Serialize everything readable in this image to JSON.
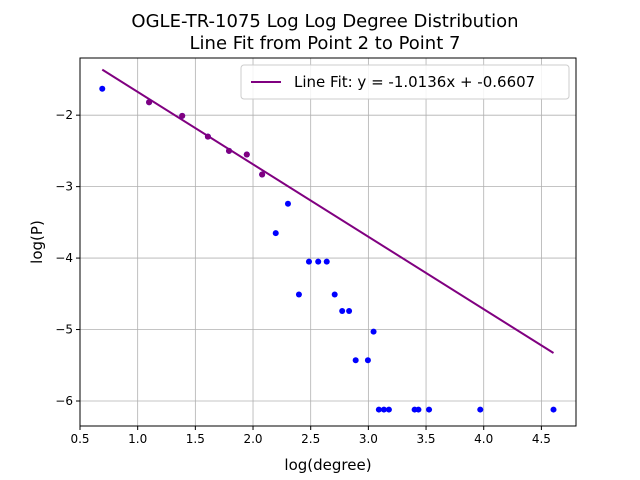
{
  "chart_data": {
    "type": "scatter",
    "title": "OGLE-TR-1075 Log Log Degree Distribution",
    "subtitle": "Line Fit from Point 2 to Point 7",
    "xlabel": "log(degree)",
    "ylabel": "log(P)",
    "xlim": [
      0.5,
      4.8
    ],
    "ylim": [
      -6.35,
      -1.2
    ],
    "xticks": [
      0.5,
      1.0,
      1.5,
      2.0,
      2.5,
      3.0,
      3.5,
      4.0,
      4.5
    ],
    "xtick_labels": [
      "0.5",
      "1.0",
      "1.5",
      "2.0",
      "2.5",
      "3.0",
      "3.5",
      "4.0",
      "4.5"
    ],
    "yticks": [
      -6,
      -5,
      -4,
      -3,
      -2
    ],
    "ytick_labels": [
      "−6",
      "−5",
      "−4",
      "−3",
      "−2"
    ],
    "grid": true,
    "legend_position": "top-right",
    "colors": {
      "points": "#0000ff",
      "fit_points": "#800080",
      "fit_line": "#800080",
      "grid": "#b0b0b0"
    },
    "points": {
      "x": [
        0.693,
        1.099,
        1.386,
        1.609,
        1.792,
        1.946,
        2.079,
        2.197,
        2.303,
        2.398,
        2.485,
        2.565,
        2.639,
        2.708,
        2.773,
        2.833,
        2.89,
        2.996,
        3.045,
        3.091,
        3.135,
        3.178,
        3.401,
        3.434,
        3.526,
        3.97,
        4.605
      ],
      "y": [
        -1.63,
        -1.82,
        -2.01,
        -2.3,
        -2.5,
        -2.55,
        -2.83,
        -3.65,
        -3.24,
        -4.51,
        -4.05,
        -4.05,
        -4.05,
        -4.51,
        -4.74,
        -4.74,
        -5.43,
        -5.43,
        -5.03,
        -6.12,
        -6.12,
        -6.12,
        -6.12,
        -6.12,
        -6.12,
        -6.12,
        -6.12
      ]
    },
    "fit_points": {
      "x": [
        1.099,
        1.386,
        1.609,
        1.792,
        1.946,
        2.079
      ],
      "y": [
        -1.82,
        -2.01,
        -2.3,
        -2.5,
        -2.55,
        -2.83
      ]
    },
    "fit_line": {
      "name": "Line Fit: y = -1.0136x + -0.6607",
      "slope": -1.0136,
      "intercept": -0.6607,
      "x_range": [
        0.693,
        4.605
      ]
    }
  }
}
